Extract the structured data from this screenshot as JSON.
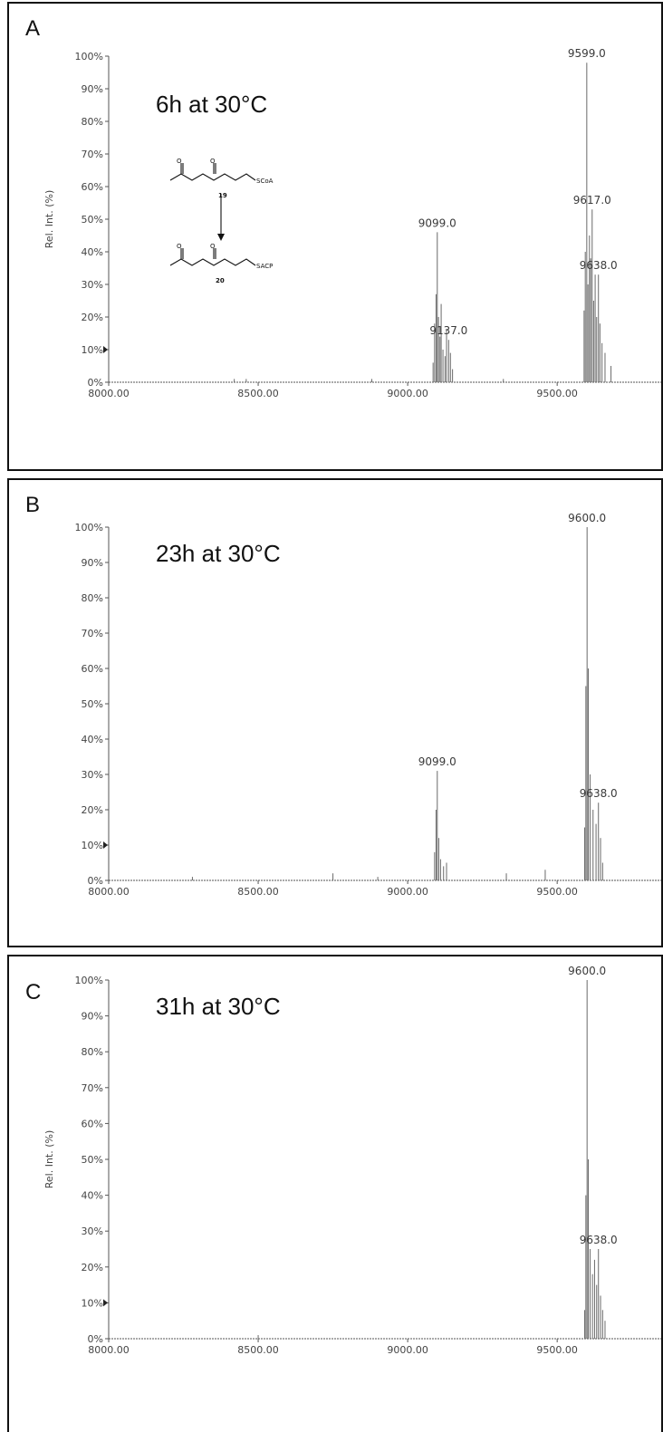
{
  "panels": [
    {
      "letter": "A",
      "condition": "6h at 30°C",
      "ylabel": "Rel. Int. (%)",
      "scheme": {
        "substrate_label": "SCoA",
        "substrate_number": "19",
        "product_label": "SACP",
        "product_number": "20"
      }
    },
    {
      "letter": "B",
      "condition": "23h at 30°C",
      "ylabel": ""
    },
    {
      "letter": "C",
      "condition": "31h at 30°C",
      "ylabel": "Rel. Int. (%)"
    }
  ],
  "chart_data": [
    {
      "type": "line",
      "title": "",
      "xlabel": "",
      "ylabel": "Rel. Int. (%)",
      "xlim": [
        8000,
        9860
      ],
      "ylim": [
        0,
        100
      ],
      "x_ticks": [
        "8000.00",
        "8500.00",
        "9000.00",
        "9500.00"
      ],
      "y_ticks": [
        "0%",
        "10%",
        "20%",
        "30%",
        "40%",
        "50%",
        "60%",
        "70%",
        "80%",
        "90%",
        "100%"
      ],
      "series": [
        {
          "x": [
            8420,
            8460,
            8880,
            9085,
            9090,
            9095,
            9099,
            9103,
            9108,
            9112,
            9118,
            9125,
            9130,
            9137,
            9143,
            9150,
            9320,
            9590,
            9594,
            9599,
            9603,
            9608,
            9612,
            9617,
            9622,
            9627,
            9632,
            9638,
            9643,
            9650,
            9660,
            9680
          ],
          "y": [
            1,
            1,
            1,
            6,
            18,
            27,
            46,
            20,
            14,
            24,
            10,
            8,
            16,
            13,
            9,
            4,
            1,
            22,
            40,
            98,
            30,
            45,
            38,
            53,
            25,
            33,
            20,
            33,
            18,
            12,
            9,
            5
          ]
        }
      ],
      "annotations": [
        {
          "text": "9099.0",
          "x": 9099,
          "y": 46
        },
        {
          "text": "9137.0",
          "x": 9137,
          "y": 13
        },
        {
          "text": "9599.0",
          "x": 9599,
          "y": 98
        },
        {
          "text": "9617.0",
          "x": 9617,
          "y": 53
        },
        {
          "text": "9638.0",
          "x": 9638,
          "y": 33
        }
      ]
    },
    {
      "type": "line",
      "title": "",
      "xlabel": "",
      "ylabel": "",
      "xlim": [
        8000,
        9860
      ],
      "ylim": [
        0,
        100
      ],
      "x_ticks": [
        "8000.00",
        "8500.00",
        "9000.00",
        "9500.00"
      ],
      "y_ticks": [
        "0%",
        "10%",
        "20%",
        "30%",
        "40%",
        "50%",
        "60%",
        "70%",
        "80%",
        "90%",
        "100%"
      ],
      "series": [
        {
          "x": [
            8280,
            8750,
            8900,
            9090,
            9095,
            9099,
            9104,
            9110,
            9120,
            9130,
            9330,
            9460,
            9592,
            9596,
            9600,
            9604,
            9610,
            9620,
            9630,
            9638,
            9645,
            9652
          ],
          "y": [
            1,
            2,
            1,
            8,
            20,
            31,
            12,
            6,
            4,
            5,
            2,
            3,
            15,
            55,
            100,
            60,
            30,
            20,
            16,
            22,
            12,
            5
          ]
        }
      ],
      "annotations": [
        {
          "text": "9099.0",
          "x": 9099,
          "y": 31
        },
        {
          "text": "9600.0",
          "x": 9600,
          "y": 100
        },
        {
          "text": "9638.0",
          "x": 9638,
          "y": 22
        }
      ]
    },
    {
      "type": "line",
      "title": "",
      "xlabel": "",
      "ylabel": "Rel. Int. (%)",
      "xlim": [
        8000,
        9860
      ],
      "ylim": [
        0,
        100
      ],
      "x_ticks": [
        "8000.00",
        "8500.00",
        "9000.00",
        "9500.00"
      ],
      "y_ticks": [
        "0%",
        "10%",
        "20%",
        "30%",
        "40%",
        "50%",
        "60%",
        "70%",
        "80%",
        "90%",
        "100%"
      ],
      "series": [
        {
          "x": [
            8500,
            9592,
            9596,
            9600,
            9604,
            9610,
            9618,
            9625,
            9632,
            9638,
            9645,
            9652,
            9660
          ],
          "y": [
            1,
            8,
            40,
            100,
            50,
            25,
            18,
            22,
            15,
            25,
            12,
            8,
            5
          ]
        }
      ],
      "annotations": [
        {
          "text": "9600.0",
          "x": 9600,
          "y": 100
        },
        {
          "text": "9638.0",
          "x": 9638,
          "y": 25
        }
      ]
    }
  ]
}
